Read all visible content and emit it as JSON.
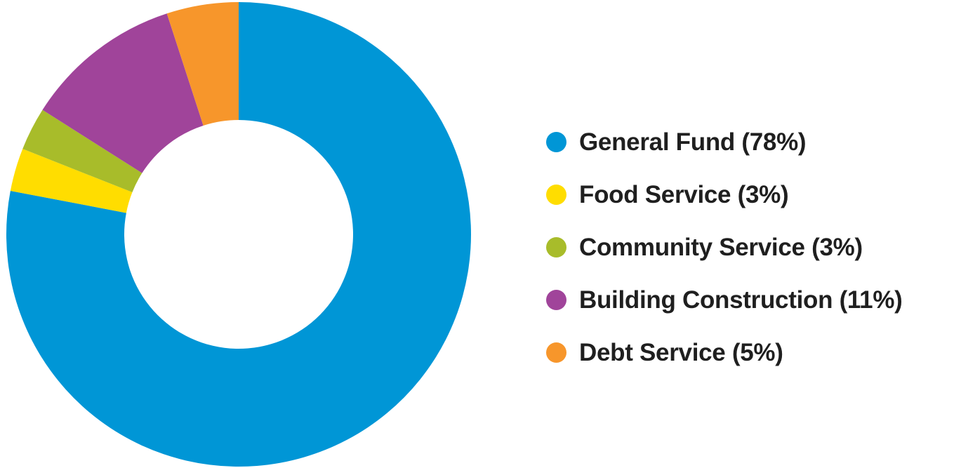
{
  "chart_data": {
    "type": "pie",
    "title": "",
    "donut": true,
    "legend_position": "right",
    "start_angle_deg": 0,
    "direction": "clockwise",
    "categories": [
      "General Fund",
      "Food Service",
      "Community Service",
      "Building Construction",
      "Debt Service"
    ],
    "values": [
      78,
      3,
      3,
      11,
      5
    ],
    "unit": "%",
    "colors": [
      "#0096d6",
      "#ffdd00",
      "#a8bc2a",
      "#a0449a",
      "#f7962b"
    ],
    "legend": [
      {
        "label": "General Fund (78%)",
        "color": "#0096d6"
      },
      {
        "label": "Food Service (3%)",
        "color": "#ffdd00"
      },
      {
        "label": "Community Service (3%)",
        "color": "#a8bc2a"
      },
      {
        "label": "Building Construction (11%)",
        "color": "#a0449a"
      },
      {
        "label": "Debt Service (5%)",
        "color": "#f7962b"
      }
    ]
  }
}
